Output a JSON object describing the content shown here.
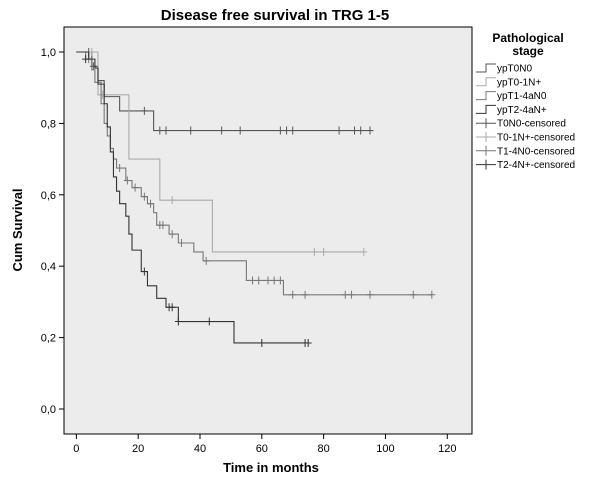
{
  "chart_data": {
    "type": "line",
    "title": "Disease free survival in TRG 1-5",
    "xlabel": "Time in months",
    "ylabel": "Cum Survival",
    "xlim": [
      -4,
      128
    ],
    "ylim": [
      -0.07,
      1.07
    ],
    "x_ticks": [
      0,
      20,
      40,
      60,
      80,
      100,
      120
    ],
    "y_ticks": [
      0.0,
      0.2,
      0.4,
      0.6,
      0.8,
      1.0
    ],
    "x_tick_labels": [
      "0",
      "20",
      "40",
      "60",
      "80",
      "100",
      "120"
    ],
    "y_tick_labels": [
      "0,0",
      "0,2",
      "0,4",
      "0,6",
      "0,8",
      "1,0"
    ],
    "grid": false,
    "legend_position": "right",
    "legend_title": "Pathological stage",
    "legend": [
      {
        "label": "ypT0N0",
        "kind": "line",
        "series": 0
      },
      {
        "label": "ypT0-1N+",
        "kind": "line",
        "series": 1
      },
      {
        "label": "ypT1-4aN0",
        "kind": "line",
        "series": 2
      },
      {
        "label": "ypT2-4aN+",
        "kind": "line",
        "series": 3
      },
      {
        "label": "T0N0-censored",
        "kind": "censor",
        "series": 0
      },
      {
        "label": "T0-1N+-censored",
        "kind": "censor",
        "series": 1
      },
      {
        "label": "T1-4N0-censored",
        "kind": "censor",
        "series": 2
      },
      {
        "label": "T2-4N+-censored",
        "kind": "censor",
        "series": 3
      }
    ],
    "series": [
      {
        "name": "ypT0N0",
        "color": "#555555",
        "steps": [
          [
            0,
            1.0
          ],
          [
            5,
            0.96
          ],
          [
            7,
            0.92
          ],
          [
            9,
            0.875
          ],
          [
            14,
            0.835
          ],
          [
            25,
            0.78
          ],
          [
            96,
            0.78
          ]
        ],
        "censored": [
          [
            4,
            1.0
          ],
          [
            5.5,
            0.96
          ],
          [
            22,
            0.835
          ],
          [
            27,
            0.78
          ],
          [
            29,
            0.78
          ],
          [
            37,
            0.78
          ],
          [
            47,
            0.78
          ],
          [
            53,
            0.78
          ],
          [
            66,
            0.78
          ],
          [
            68,
            0.78
          ],
          [
            70,
            0.78
          ],
          [
            85,
            0.78
          ],
          [
            90,
            0.78
          ],
          [
            92,
            0.78
          ],
          [
            95,
            0.78
          ]
        ]
      },
      {
        "name": "ypT0-1N+",
        "color": "#aaaaaa",
        "steps": [
          [
            0,
            1.0
          ],
          [
            7,
            0.88
          ],
          [
            17,
            0.7
          ],
          [
            27,
            0.585
          ],
          [
            44,
            0.44
          ],
          [
            93,
            0.44
          ]
        ],
        "censored": [
          [
            5,
            1.0
          ],
          [
            8.5,
            0.88
          ],
          [
            31,
            0.585
          ],
          [
            77,
            0.44
          ],
          [
            80,
            0.44
          ],
          [
            93,
            0.44
          ]
        ]
      },
      {
        "name": "ypT1-4aN0",
        "color": "#777777",
        "steps": [
          [
            0,
            1.0
          ],
          [
            3,
            0.98
          ],
          [
            5,
            0.95
          ],
          [
            6,
            0.915
          ],
          [
            8,
            0.855
          ],
          [
            9,
            0.8
          ],
          [
            10,
            0.765
          ],
          [
            11,
            0.73
          ],
          [
            12,
            0.7
          ],
          [
            13,
            0.675
          ],
          [
            16,
            0.64
          ],
          [
            18,
            0.62
          ],
          [
            21,
            0.595
          ],
          [
            23,
            0.575
          ],
          [
            25,
            0.55
          ],
          [
            26,
            0.515
          ],
          [
            30,
            0.49
          ],
          [
            33,
            0.465
          ],
          [
            38,
            0.44
          ],
          [
            41,
            0.415
          ],
          [
            55,
            0.36
          ],
          [
            67,
            0.32
          ],
          [
            115,
            0.32
          ]
        ],
        "censored": [
          [
            4,
            0.98
          ],
          [
            14,
            0.675
          ],
          [
            16.5,
            0.64
          ],
          [
            19,
            0.62
          ],
          [
            22,
            0.595
          ],
          [
            24,
            0.575
          ],
          [
            27,
            0.515
          ],
          [
            28,
            0.515
          ],
          [
            31,
            0.49
          ],
          [
            34,
            0.465
          ],
          [
            42,
            0.415
          ],
          [
            57,
            0.36
          ],
          [
            59,
            0.36
          ],
          [
            62,
            0.36
          ],
          [
            64,
            0.36
          ],
          [
            66,
            0.36
          ],
          [
            70,
            0.32
          ],
          [
            74,
            0.32
          ],
          [
            87,
            0.32
          ],
          [
            89,
            0.32
          ],
          [
            95,
            0.32
          ],
          [
            109,
            0.32
          ],
          [
            115,
            0.32
          ]
        ]
      },
      {
        "name": "ypT2-4aN+",
        "color": "#333333",
        "steps": [
          [
            0,
            1.0
          ],
          [
            4,
            0.98
          ],
          [
            6,
            0.955
          ],
          [
            7,
            0.91
          ],
          [
            9,
            0.855
          ],
          [
            10,
            0.79
          ],
          [
            11,
            0.72
          ],
          [
            12,
            0.65
          ],
          [
            13,
            0.61
          ],
          [
            14,
            0.575
          ],
          [
            16,
            0.54
          ],
          [
            17,
            0.49
          ],
          [
            18,
            0.445
          ],
          [
            21,
            0.385
          ],
          [
            23,
            0.345
          ],
          [
            26,
            0.31
          ],
          [
            29,
            0.285
          ],
          [
            33,
            0.245
          ],
          [
            51,
            0.185
          ],
          [
            75,
            0.185
          ]
        ],
        "censored": [
          [
            3,
            0.98
          ],
          [
            22,
            0.385
          ],
          [
            30,
            0.285
          ],
          [
            31,
            0.285
          ],
          [
            33,
            0.245
          ],
          [
            43,
            0.245
          ],
          [
            60,
            0.185
          ],
          [
            74,
            0.185
          ],
          [
            75,
            0.185
          ]
        ]
      }
    ]
  }
}
